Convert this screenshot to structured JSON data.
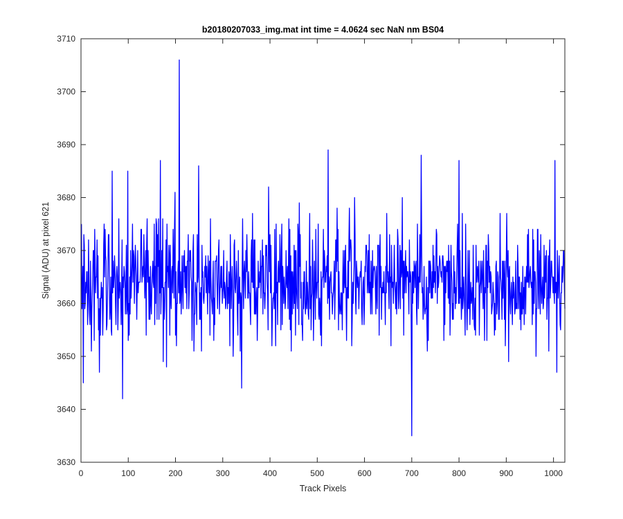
{
  "chart_data": {
    "type": "line",
    "title": "b20180207033_img.mat int time = 4.0624 sec  NaN nm BS04",
    "xlabel": "Track Pixels",
    "ylabel": "Signal (ADU) at pixel 621",
    "xlim": [
      0,
      1024
    ],
    "ylim": [
      3630,
      3710
    ],
    "xticks": [
      0,
      100,
      200,
      300,
      400,
      500,
      600,
      700,
      800,
      900,
      1000
    ],
    "yticks": [
      3630,
      3640,
      3650,
      3660,
      3670,
      3680,
      3690,
      3700,
      3710
    ],
    "xtick_labels": [
      "0",
      "100",
      "200",
      "300",
      "400",
      "500",
      "600",
      "700",
      "800",
      "900",
      "1000"
    ],
    "ytick_labels": [
      "3630",
      "3640",
      "3650",
      "3660",
      "3670",
      "3680",
      "3690",
      "3700",
      "3710"
    ],
    "grid": false,
    "series": [
      {
        "color": "#0000ff",
        "x_start": 1,
        "x_step": 1,
        "count": 1024,
        "mean": 3664,
        "noise_sd": 5.5,
        "notable_points": [
          {
            "x": 5,
            "y": 3645
          },
          {
            "x": 66,
            "y": 3685
          },
          {
            "x": 88,
            "y": 3642
          },
          {
            "x": 99,
            "y": 3685
          },
          {
            "x": 168,
            "y": 3687
          },
          {
            "x": 208,
            "y": 3706
          },
          {
            "x": 249,
            "y": 3686
          },
          {
            "x": 340,
            "y": 3644
          },
          {
            "x": 523,
            "y": 3689
          },
          {
            "x": 700,
            "y": 3635
          },
          {
            "x": 720,
            "y": 3688
          },
          {
            "x": 800,
            "y": 3687
          },
          {
            "x": 1003,
            "y": 3687
          },
          {
            "x": 1007,
            "y": 3647
          }
        ]
      }
    ]
  }
}
